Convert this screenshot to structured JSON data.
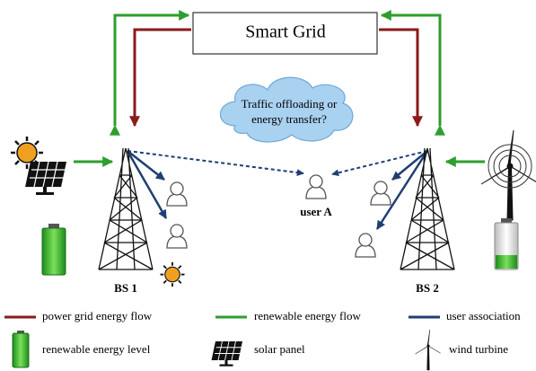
{
  "header": {
    "title": "Smart Grid"
  },
  "cloud": {
    "text": [
      "Traffic offloading or",
      "energy transfer?"
    ]
  },
  "nodes": [
    {
      "label": "BS 1"
    },
    {
      "label": "BS 2"
    },
    {
      "label": "user A"
    }
  ],
  "legend": [
    "power grid energy flow",
    "renewable energy flow",
    "user association",
    "renewable energy level",
    "solar panel",
    "wind turbine"
  ]
}
